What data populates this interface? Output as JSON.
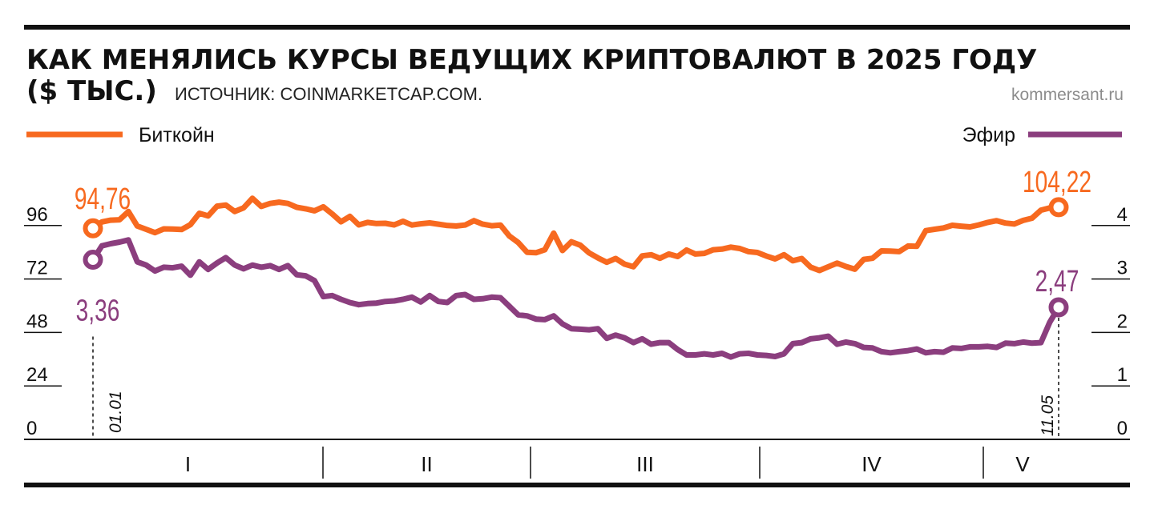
{
  "title_line1": "КАК МЕНЯЛИСЬ КУРСЫ ВЕДУЩИХ КРИПТОВАЛЮТ В 2025 ГОДУ",
  "title_line2": "($ ТЫС.)",
  "source": "ИСТОЧНИК: COINMARKETCAP.COM.",
  "brand": "kommersant.ru",
  "colors": {
    "btc": "#f7691f",
    "eth": "#8b3e7e",
    "ink": "#111111",
    "muted": "#8c8c8c"
  },
  "chart_data": {
    "type": "line",
    "x_range": [
      "01.01",
      "11.05"
    ],
    "x_period_labels": [
      "I",
      "II",
      "III",
      "IV",
      "V"
    ],
    "y_left": {
      "unit": "$ тыс.",
      "ticks": [
        0,
        24,
        48,
        72,
        96
      ],
      "ylim": [
        0,
        120
      ]
    },
    "y_right": {
      "unit": "$ тыс.",
      "ticks": [
        0,
        1,
        2,
        3,
        4
      ],
      "ylim": [
        0,
        5
      ]
    },
    "date_labels": {
      "start": "01.01",
      "end": "11.05"
    },
    "series": [
      {
        "name": "Биткойн",
        "axis": "left",
        "color": "#f7691f",
        "start_label": "94,76",
        "end_label": "104,22",
        "values": [
          94.76,
          97.6,
          98.4,
          98.6,
          102.3,
          95.8,
          94.3,
          92.8,
          94.5,
          94.4,
          94.2,
          96.4,
          101.5,
          100.3,
          104.7,
          105.2,
          102.3,
          103.9,
          108.2,
          104.6,
          105.9,
          106.5,
          105.9,
          104.2,
          103.5,
          102.6,
          104.4,
          101.2,
          97.7,
          100.1,
          96.3,
          97.4,
          96.9,
          97.0,
          96.3,
          97.9,
          96.2,
          96.8,
          97.2,
          96.6,
          96.0,
          95.8,
          96.2,
          98.2,
          96.6,
          95.9,
          96.2,
          91.3,
          88.4,
          84.0,
          83.8,
          85.1,
          92.6,
          84.8,
          88.7,
          87.2,
          83.7,
          81.5,
          79.5,
          81.2,
          78.7,
          77.5,
          82.4,
          82.9,
          81.3,
          83.2,
          82.1,
          85.0,
          83.2,
          83.5,
          85.1,
          85.4,
          86.3,
          85.7,
          84.3,
          83.9,
          82.3,
          81.0,
          82.9,
          80.2,
          81.2,
          77.3,
          75.8,
          77.5,
          79.1,
          77.6,
          76.4,
          80.8,
          81.3,
          84.6,
          84.5,
          84.3,
          86.8,
          86.7,
          93.7,
          94.3,
          94.9,
          96.1,
          95.7,
          95.4,
          96.3,
          97.4,
          98.2,
          97.1,
          96.7,
          98.3,
          99.3,
          102.9,
          103.9,
          104.22
        ]
      },
      {
        "name": "Эфир",
        "axis": "right",
        "color": "#8b3e7e",
        "start_label": "3,36",
        "end_label": "2,47",
        "values": [
          3.36,
          3.62,
          3.66,
          3.69,
          3.73,
          3.32,
          3.26,
          3.15,
          3.22,
          3.21,
          3.24,
          3.07,
          3.32,
          3.18,
          3.3,
          3.4,
          3.26,
          3.19,
          3.26,
          3.22,
          3.25,
          3.18,
          3.25,
          3.08,
          3.06,
          2.97,
          2.67,
          2.69,
          2.62,
          2.56,
          2.52,
          2.54,
          2.55,
          2.58,
          2.59,
          2.62,
          2.66,
          2.57,
          2.69,
          2.58,
          2.56,
          2.69,
          2.71,
          2.62,
          2.63,
          2.66,
          2.65,
          2.49,
          2.33,
          2.31,
          2.25,
          2.24,
          2.31,
          2.16,
          2.07,
          2.06,
          2.05,
          2.07,
          1.89,
          1.95,
          1.9,
          1.81,
          1.88,
          1.78,
          1.81,
          1.81,
          1.68,
          1.58,
          1.58,
          1.6,
          1.58,
          1.61,
          1.54,
          1.6,
          1.61,
          1.58,
          1.57,
          1.55,
          1.6,
          1.79,
          1.81,
          1.88,
          1.9,
          1.93,
          1.78,
          1.82,
          1.79,
          1.72,
          1.71,
          1.64,
          1.62,
          1.64,
          1.66,
          1.69,
          1.62,
          1.64,
          1.63,
          1.71,
          1.7,
          1.73,
          1.73,
          1.74,
          1.72,
          1.8,
          1.79,
          1.82,
          1.8,
          1.81,
          2.19,
          2.47
        ]
      }
    ]
  }
}
